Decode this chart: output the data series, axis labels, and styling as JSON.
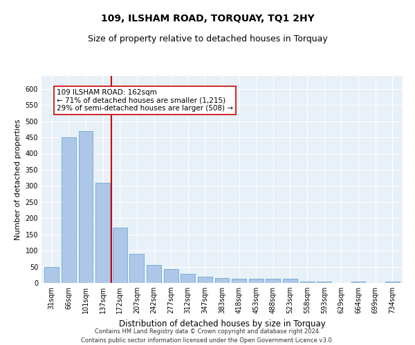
{
  "title": "109, ILSHAM ROAD, TORQUAY, TQ1 2HY",
  "subtitle": "Size of property relative to detached houses in Torquay",
  "xlabel": "Distribution of detached houses by size in Torquay",
  "ylabel": "Number of detached properties",
  "footer_line1": "Contains HM Land Registry data © Crown copyright and database right 2024.",
  "footer_line2": "Contains public sector information licensed under the Open Government Licence v3.0.",
  "annotation_line1": "109 ILSHAM ROAD: 162sqm",
  "annotation_line2": "← 71% of detached houses are smaller (1,215)",
  "annotation_line3": "29% of semi-detached houses are larger (508) →",
  "bar_color": "#aec6e8",
  "bar_edge_color": "#6aaad4",
  "ref_line_color": "#cc0000",
  "ref_line_x": 3.5,
  "categories": [
    "31sqm",
    "66sqm",
    "101sqm",
    "137sqm",
    "172sqm",
    "207sqm",
    "242sqm",
    "277sqm",
    "312sqm",
    "347sqm",
    "383sqm",
    "418sqm",
    "453sqm",
    "488sqm",
    "523sqm",
    "558sqm",
    "593sqm",
    "629sqm",
    "664sqm",
    "699sqm",
    "734sqm"
  ],
  "values": [
    50,
    450,
    470,
    310,
    170,
    90,
    55,
    42,
    27,
    20,
    15,
    13,
    13,
    13,
    12,
    5,
    5,
    0,
    5,
    0,
    4
  ],
  "ylim": [
    0,
    640
  ],
  "yticks": [
    0,
    50,
    100,
    150,
    200,
    250,
    300,
    350,
    400,
    450,
    500,
    550,
    600
  ],
  "bg_color": "#e8f0f8",
  "grid_color": "#ffffff",
  "title_fontsize": 10,
  "subtitle_fontsize": 9,
  "annotation_fontsize": 7.5,
  "ylabel_fontsize": 8,
  "xlabel_fontsize": 8.5,
  "footer_fontsize": 6,
  "tick_fontsize": 7
}
